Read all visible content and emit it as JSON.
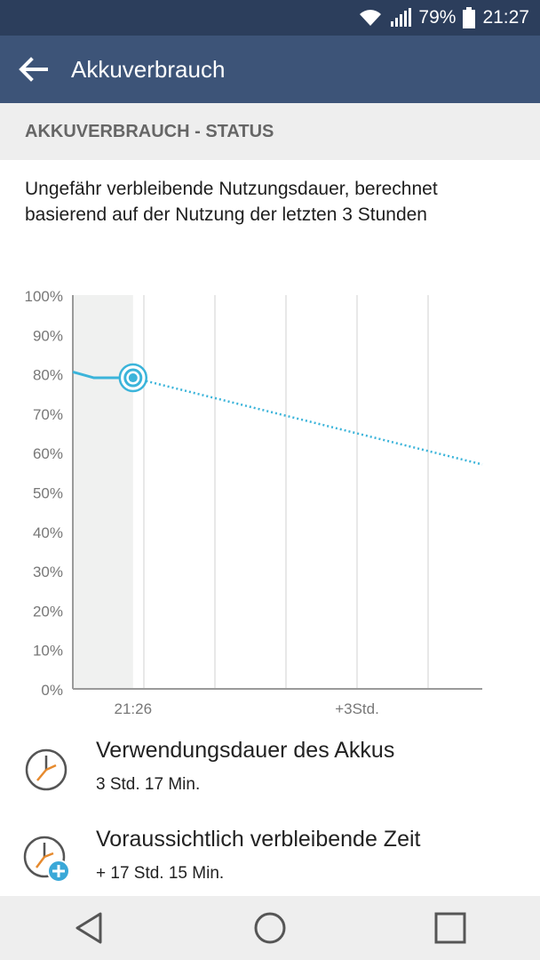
{
  "status_bar": {
    "battery_percent": "79%",
    "time": "21:27"
  },
  "app_bar": {
    "title": "Akkuverbrauch",
    "back_icon": "arrow-left-icon"
  },
  "section": {
    "header": "AKKUVERBRAUCH - STATUS"
  },
  "description": "Ungefähr verbleibende Nutzungsdauer, berechnet basierend auf der Nutzung der letzten 3 Stunden",
  "chart_data": {
    "type": "line",
    "y_ticks": [
      "100%",
      "90%",
      "80%",
      "70%",
      "60%",
      "50%",
      "40%",
      "30%",
      "20%",
      "10%",
      "0%"
    ],
    "x_tick_labels": [
      "21:26",
      "+3Std."
    ],
    "ylim": [
      0,
      100
    ],
    "series": [
      {
        "style": "solid",
        "color": "#3bb4da",
        "points": [
          [
            0,
            80.5
          ],
          [
            0.35,
            79
          ],
          [
            1,
            79
          ]
        ]
      },
      {
        "style": "dotted",
        "color": "#3bb4da",
        "points": [
          [
            1,
            79
          ],
          [
            6.8,
            57
          ]
        ]
      }
    ],
    "current_marker": {
      "x": 1,
      "y": 79
    },
    "x_range": [
      0,
      6.8
    ],
    "grid": true
  },
  "usage": {
    "label": "Verwendungsdauer des Akkus",
    "value": "3 Std. 17 Min."
  },
  "remaining": {
    "label": "Voraussichtlich verbleibende Zeit",
    "value": "+ 17 Std. 15 Min."
  },
  "colors": {
    "accent": "#3bb4da",
    "app_bar": "#3d5478",
    "status_bar": "#2c3e5c"
  }
}
